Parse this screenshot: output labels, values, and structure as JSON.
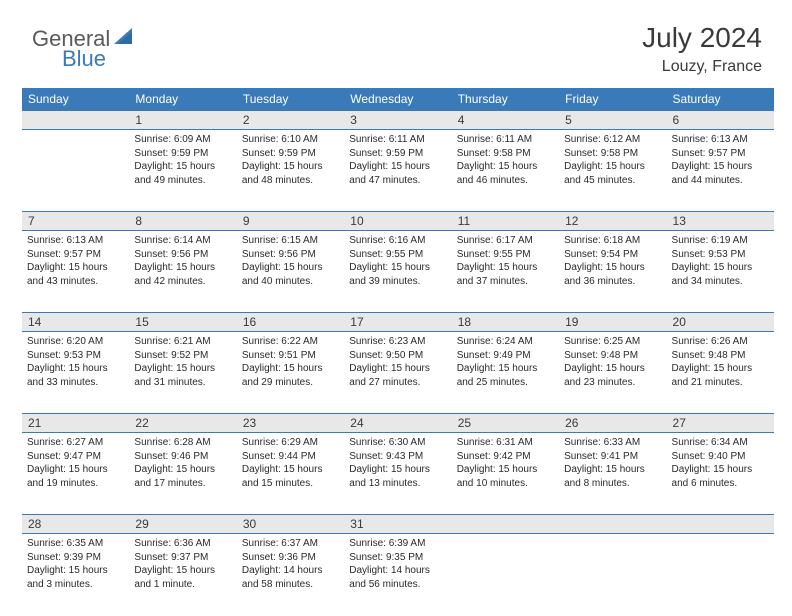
{
  "brand": {
    "part1": "General",
    "part2": "Blue",
    "icon_color": "#3a7ab8"
  },
  "title": "July 2024",
  "location": "Louzy, France",
  "colors": {
    "header_bg": "#3a7ab8",
    "header_text": "#ffffff",
    "daynum_bg": "#e8e8e8",
    "text": "#2a2a2a",
    "rule": "#3a7ab8"
  },
  "columns": [
    "Sunday",
    "Monday",
    "Tuesday",
    "Wednesday",
    "Thursday",
    "Friday",
    "Saturday"
  ],
  "weeks": [
    [
      {
        "n": "",
        "sunrise": "",
        "sunset": "",
        "daylight": ""
      },
      {
        "n": "1",
        "sunrise": "Sunrise: 6:09 AM",
        "sunset": "Sunset: 9:59 PM",
        "daylight": "Daylight: 15 hours and 49 minutes."
      },
      {
        "n": "2",
        "sunrise": "Sunrise: 6:10 AM",
        "sunset": "Sunset: 9:59 PM",
        "daylight": "Daylight: 15 hours and 48 minutes."
      },
      {
        "n": "3",
        "sunrise": "Sunrise: 6:11 AM",
        "sunset": "Sunset: 9:59 PM",
        "daylight": "Daylight: 15 hours and 47 minutes."
      },
      {
        "n": "4",
        "sunrise": "Sunrise: 6:11 AM",
        "sunset": "Sunset: 9:58 PM",
        "daylight": "Daylight: 15 hours and 46 minutes."
      },
      {
        "n": "5",
        "sunrise": "Sunrise: 6:12 AM",
        "sunset": "Sunset: 9:58 PM",
        "daylight": "Daylight: 15 hours and 45 minutes."
      },
      {
        "n": "6",
        "sunrise": "Sunrise: 6:13 AM",
        "sunset": "Sunset: 9:57 PM",
        "daylight": "Daylight: 15 hours and 44 minutes."
      }
    ],
    [
      {
        "n": "7",
        "sunrise": "Sunrise: 6:13 AM",
        "sunset": "Sunset: 9:57 PM",
        "daylight": "Daylight: 15 hours and 43 minutes."
      },
      {
        "n": "8",
        "sunrise": "Sunrise: 6:14 AM",
        "sunset": "Sunset: 9:56 PM",
        "daylight": "Daylight: 15 hours and 42 minutes."
      },
      {
        "n": "9",
        "sunrise": "Sunrise: 6:15 AM",
        "sunset": "Sunset: 9:56 PM",
        "daylight": "Daylight: 15 hours and 40 minutes."
      },
      {
        "n": "10",
        "sunrise": "Sunrise: 6:16 AM",
        "sunset": "Sunset: 9:55 PM",
        "daylight": "Daylight: 15 hours and 39 minutes."
      },
      {
        "n": "11",
        "sunrise": "Sunrise: 6:17 AM",
        "sunset": "Sunset: 9:55 PM",
        "daylight": "Daylight: 15 hours and 37 minutes."
      },
      {
        "n": "12",
        "sunrise": "Sunrise: 6:18 AM",
        "sunset": "Sunset: 9:54 PM",
        "daylight": "Daylight: 15 hours and 36 minutes."
      },
      {
        "n": "13",
        "sunrise": "Sunrise: 6:19 AM",
        "sunset": "Sunset: 9:53 PM",
        "daylight": "Daylight: 15 hours and 34 minutes."
      }
    ],
    [
      {
        "n": "14",
        "sunrise": "Sunrise: 6:20 AM",
        "sunset": "Sunset: 9:53 PM",
        "daylight": "Daylight: 15 hours and 33 minutes."
      },
      {
        "n": "15",
        "sunrise": "Sunrise: 6:21 AM",
        "sunset": "Sunset: 9:52 PM",
        "daylight": "Daylight: 15 hours and 31 minutes."
      },
      {
        "n": "16",
        "sunrise": "Sunrise: 6:22 AM",
        "sunset": "Sunset: 9:51 PM",
        "daylight": "Daylight: 15 hours and 29 minutes."
      },
      {
        "n": "17",
        "sunrise": "Sunrise: 6:23 AM",
        "sunset": "Sunset: 9:50 PM",
        "daylight": "Daylight: 15 hours and 27 minutes."
      },
      {
        "n": "18",
        "sunrise": "Sunrise: 6:24 AM",
        "sunset": "Sunset: 9:49 PM",
        "daylight": "Daylight: 15 hours and 25 minutes."
      },
      {
        "n": "19",
        "sunrise": "Sunrise: 6:25 AM",
        "sunset": "Sunset: 9:48 PM",
        "daylight": "Daylight: 15 hours and 23 minutes."
      },
      {
        "n": "20",
        "sunrise": "Sunrise: 6:26 AM",
        "sunset": "Sunset: 9:48 PM",
        "daylight": "Daylight: 15 hours and 21 minutes."
      }
    ],
    [
      {
        "n": "21",
        "sunrise": "Sunrise: 6:27 AM",
        "sunset": "Sunset: 9:47 PM",
        "daylight": "Daylight: 15 hours and 19 minutes."
      },
      {
        "n": "22",
        "sunrise": "Sunrise: 6:28 AM",
        "sunset": "Sunset: 9:46 PM",
        "daylight": "Daylight: 15 hours and 17 minutes."
      },
      {
        "n": "23",
        "sunrise": "Sunrise: 6:29 AM",
        "sunset": "Sunset: 9:44 PM",
        "daylight": "Daylight: 15 hours and 15 minutes."
      },
      {
        "n": "24",
        "sunrise": "Sunrise: 6:30 AM",
        "sunset": "Sunset: 9:43 PM",
        "daylight": "Daylight: 15 hours and 13 minutes."
      },
      {
        "n": "25",
        "sunrise": "Sunrise: 6:31 AM",
        "sunset": "Sunset: 9:42 PM",
        "daylight": "Daylight: 15 hours and 10 minutes."
      },
      {
        "n": "26",
        "sunrise": "Sunrise: 6:33 AM",
        "sunset": "Sunset: 9:41 PM",
        "daylight": "Daylight: 15 hours and 8 minutes."
      },
      {
        "n": "27",
        "sunrise": "Sunrise: 6:34 AM",
        "sunset": "Sunset: 9:40 PM",
        "daylight": "Daylight: 15 hours and 6 minutes."
      }
    ],
    [
      {
        "n": "28",
        "sunrise": "Sunrise: 6:35 AM",
        "sunset": "Sunset: 9:39 PM",
        "daylight": "Daylight: 15 hours and 3 minutes."
      },
      {
        "n": "29",
        "sunrise": "Sunrise: 6:36 AM",
        "sunset": "Sunset: 9:37 PM",
        "daylight": "Daylight: 15 hours and 1 minute."
      },
      {
        "n": "30",
        "sunrise": "Sunrise: 6:37 AM",
        "sunset": "Sunset: 9:36 PM",
        "daylight": "Daylight: 14 hours and 58 minutes."
      },
      {
        "n": "31",
        "sunrise": "Sunrise: 6:39 AM",
        "sunset": "Sunset: 9:35 PM",
        "daylight": "Daylight: 14 hours and 56 minutes."
      },
      {
        "n": "",
        "sunrise": "",
        "sunset": "",
        "daylight": ""
      },
      {
        "n": "",
        "sunrise": "",
        "sunset": "",
        "daylight": ""
      },
      {
        "n": "",
        "sunrise": "",
        "sunset": "",
        "daylight": ""
      }
    ]
  ]
}
